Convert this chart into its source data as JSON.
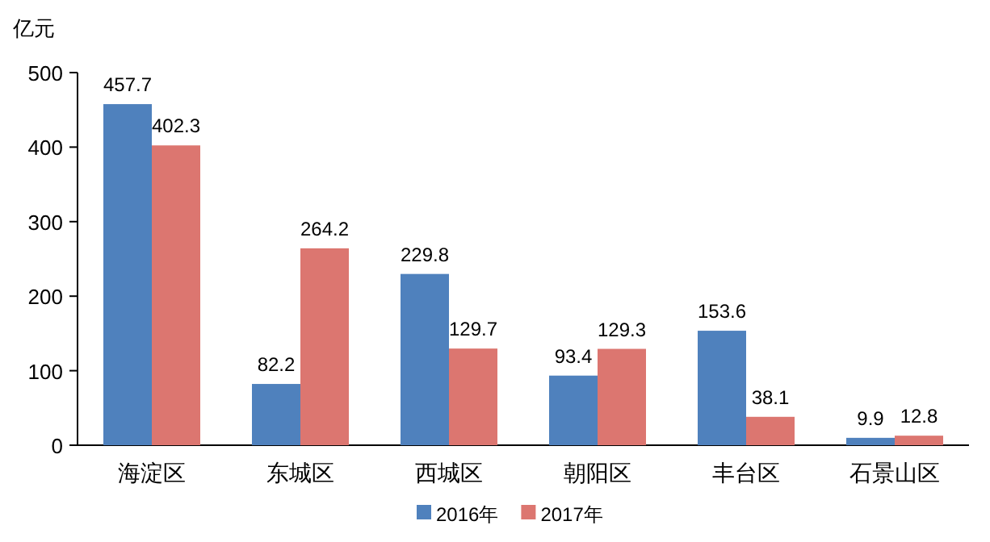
{
  "chart_data": {
    "type": "bar",
    "ylabel": "亿元",
    "categories": [
      "海淀区",
      "东城区",
      "西城区",
      "朝阳区",
      "丰台区",
      "石景山区"
    ],
    "series": [
      {
        "name": "2016年",
        "color": "#4f81bd",
        "values": [
          457.7,
          82.2,
          229.8,
          93.4,
          153.6,
          9.9
        ]
      },
      {
        "name": "2017年",
        "color": "#dc7670",
        "values": [
          402.3,
          264.2,
          129.7,
          129.3,
          38.1,
          12.8
        ]
      }
    ],
    "ylim": [
      0,
      500
    ],
    "yticks": [
      0,
      100,
      200,
      300,
      400,
      500
    ],
    "data_labels": true,
    "legend": "bottom"
  }
}
